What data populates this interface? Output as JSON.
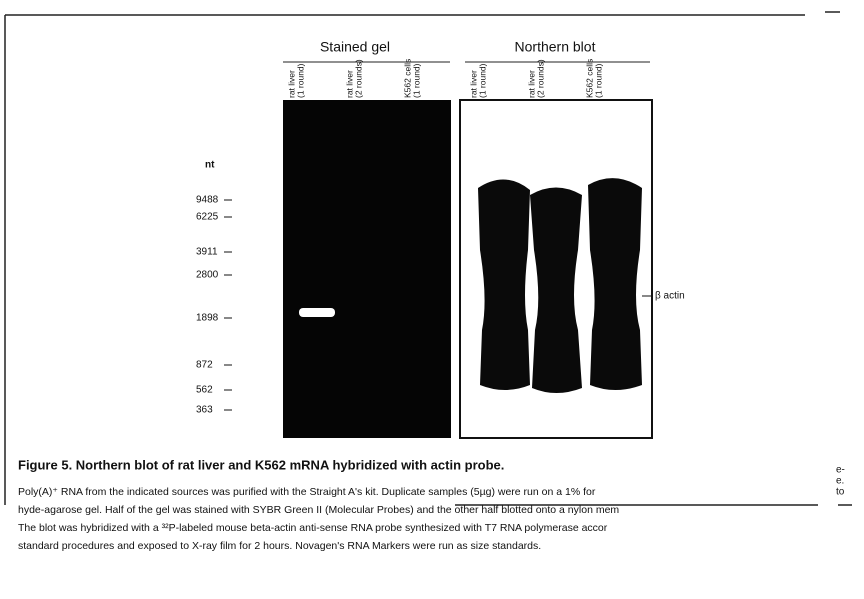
{
  "figure": {
    "panels": [
      {
        "title": "Stained gel",
        "lanes": [
          [
            "rat liver",
            "(1 round)"
          ],
          [
            "rat liver",
            "(2 rounds)"
          ],
          [
            "K562 cells",
            "(1 round)"
          ]
        ]
      },
      {
        "title": "Northern blot",
        "lanes": [
          [
            "rat liver",
            "(1 round)"
          ],
          [
            "rat liver",
            "(2 rounds)"
          ],
          [
            "K562 cells",
            "(1 round)"
          ]
        ]
      }
    ],
    "marker_unit": "nt",
    "markers": [
      "9488",
      "6225",
      "3911",
      "2800",
      "1898",
      "872",
      "562",
      "363"
    ],
    "band_label": "β actin",
    "caption": {
      "title": "Figure 5.  Northern blot of rat liver and K562 mRNA hybridized with actin probe.",
      "lines": [
        "Poly(A)⁺ RNA from the indicated sources was purified with the Straight A's kit. Duplicate samples (5µg) were run on a 1% for",
        "hyde-agarose gel. Half of the gel was stained with SYBR Green II (Molecular Probes) and the other half blotted onto a nylon mem",
        "The blot was hybridized with a ³²P-labeled mouse beta-actin anti-sense RNA probe synthesized with T7 RNA polymerase accor",
        "standard procedures and exposed to X-ray film for 2 hours. Novagen's RNA Markers were run as size standards."
      ]
    },
    "margin_fragments": [
      "e-",
      "e.",
      "to"
    ]
  }
}
